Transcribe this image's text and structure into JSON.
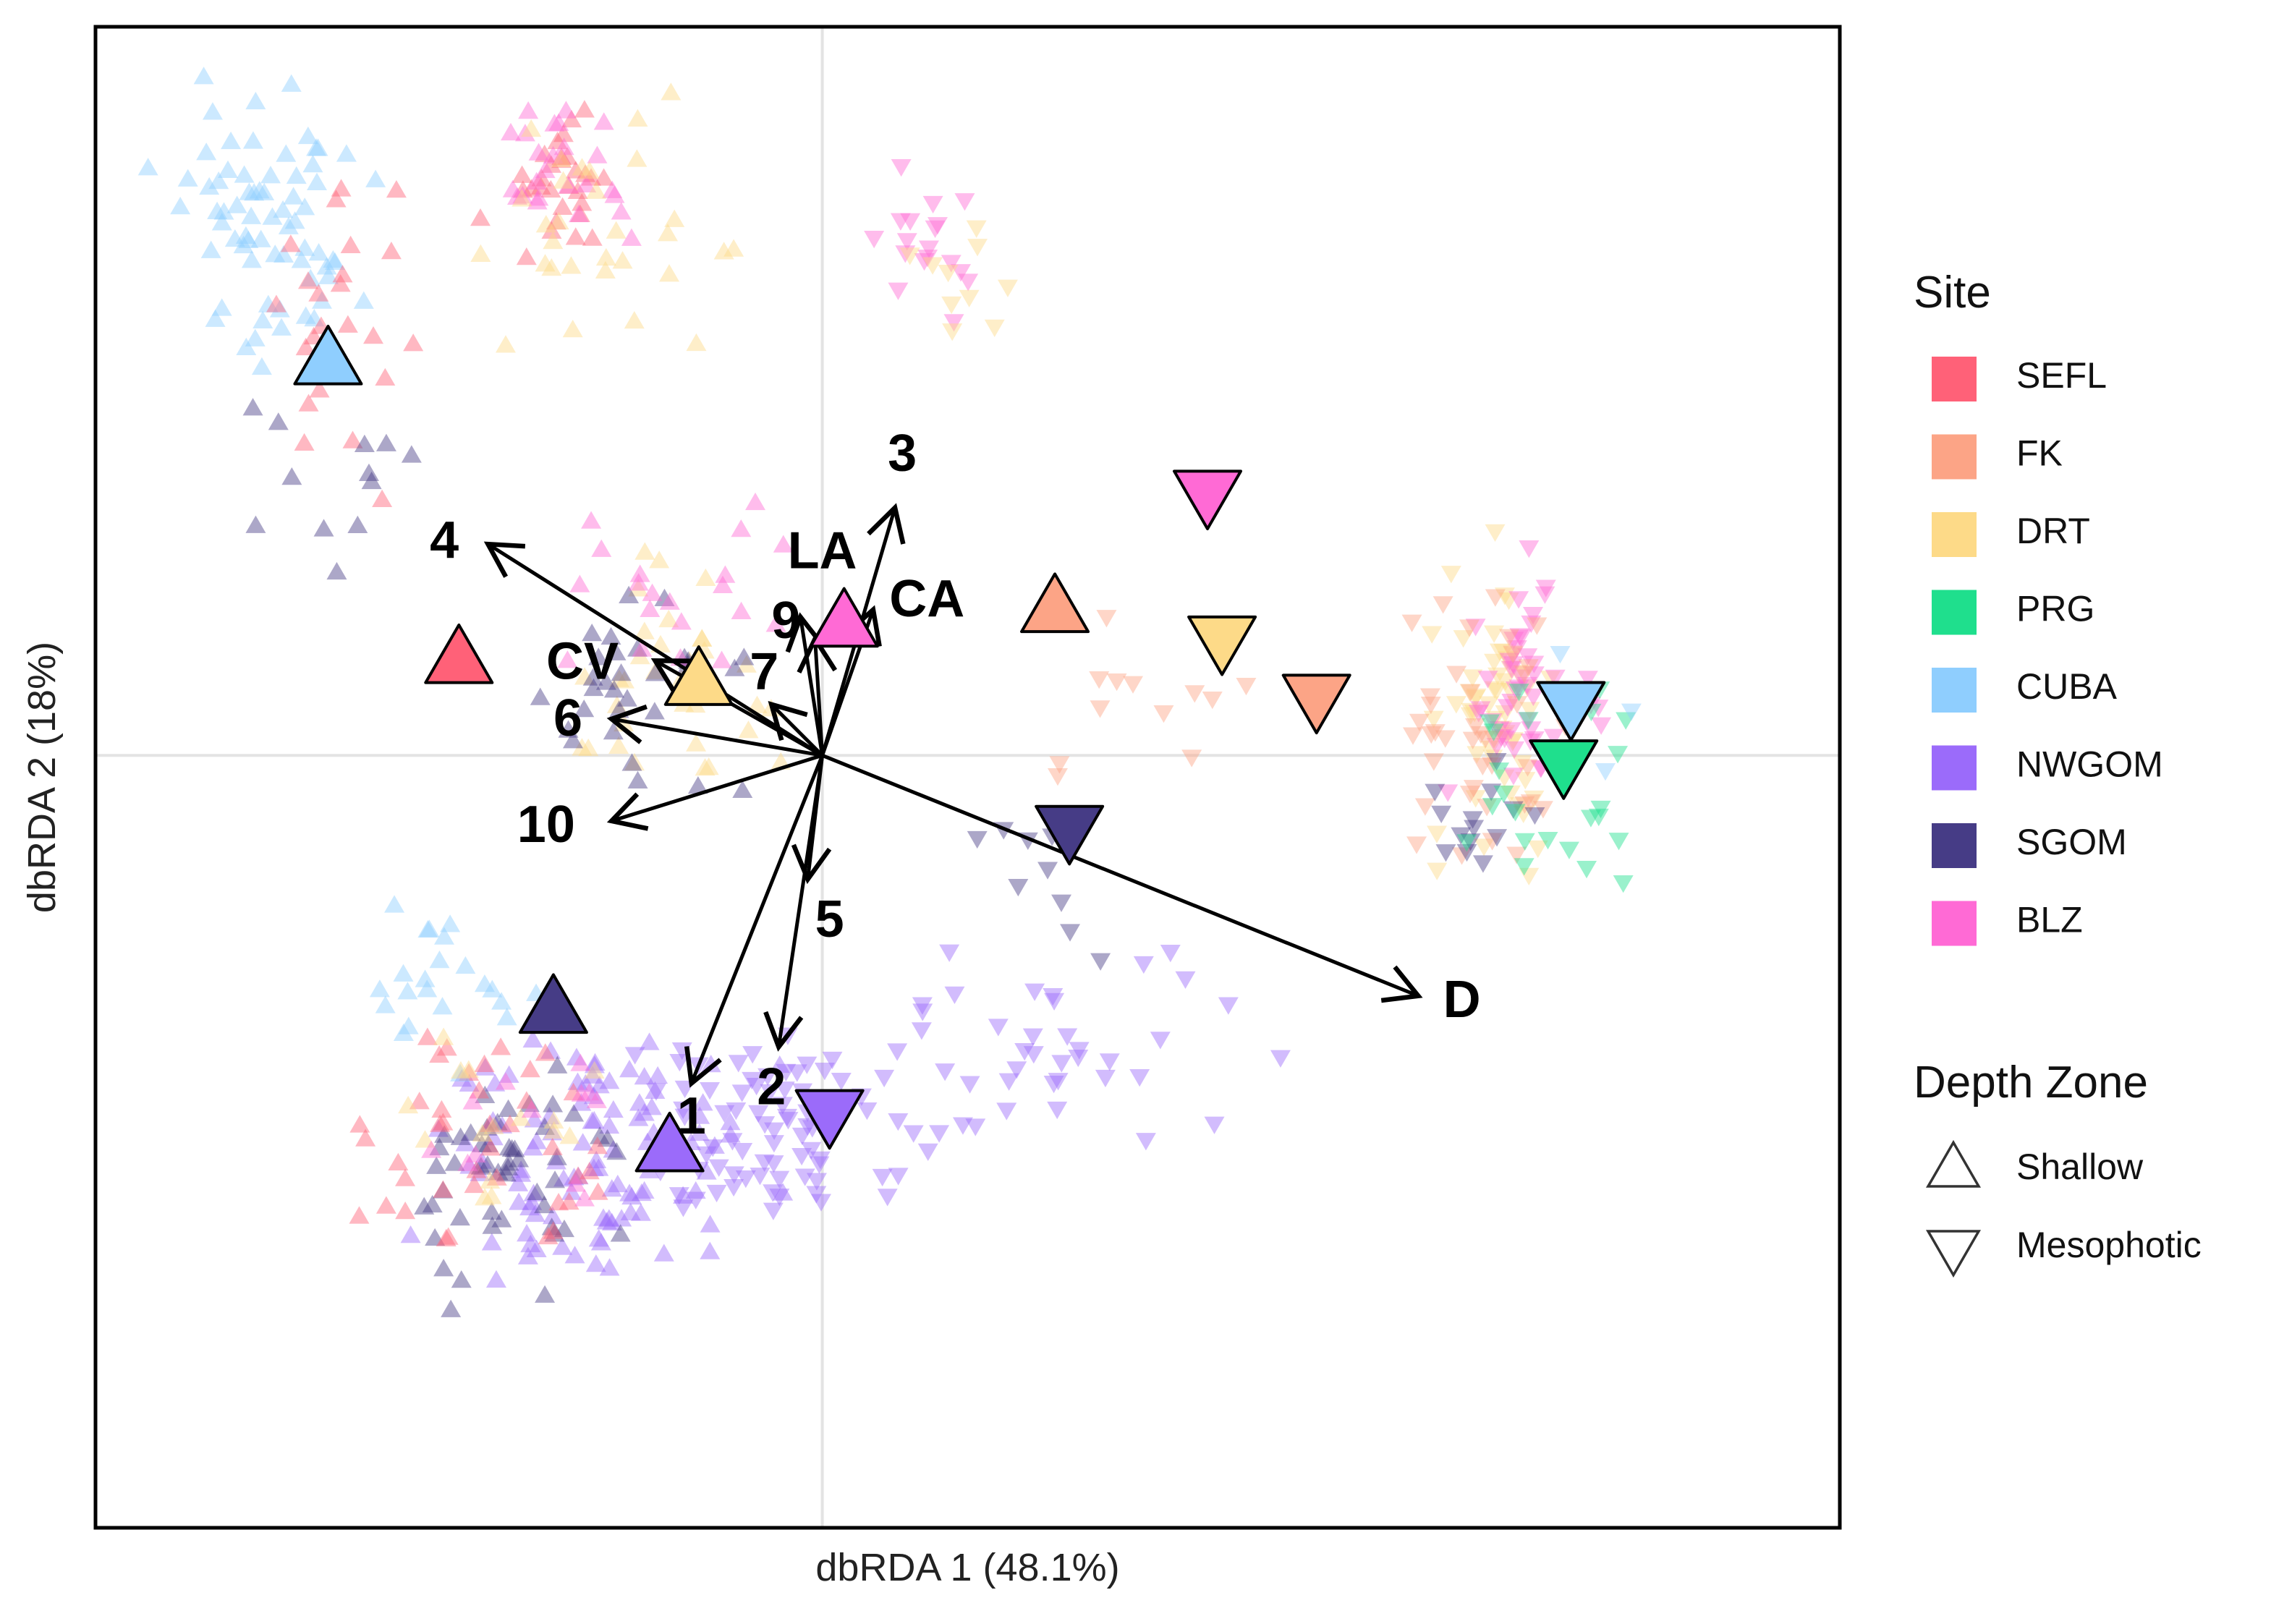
{
  "chart_data": {
    "type": "scatter",
    "xlabel": "dbRDA 1 (48.1%)",
    "ylabel": "dbRDA 2 (18%)",
    "xlim": [
      -5.0,
      7.0
    ],
    "ylim": [
      -5.3,
      5.0
    ],
    "grid": true,
    "grid_lines": {
      "x": 0,
      "y": 0
    },
    "point_alpha": 0.45,
    "colors": {
      "SEFL": "#ff6178",
      "FK": "#fca486",
      "DRT": "#fdda88",
      "PRG": "#1fdf8d",
      "CUBA": "#8fcefe",
      "NWGOM": "#9b6bfa",
      "SGOM": "#463c86",
      "BLZ": "#ff6ad5"
    },
    "legend": {
      "position": "right",
      "site_title": "Site",
      "sites": [
        "SEFL",
        "FK",
        "DRT",
        "PRG",
        "CUBA",
        "NWGOM",
        "SGOM",
        "BLZ"
      ],
      "depth_title": "Depth Zone",
      "depth_zones": [
        {
          "label": "Shallow",
          "shape": "triangle-up"
        },
        {
          "label": "Mesophotic",
          "shape": "triangle-down"
        }
      ]
    },
    "centroids": [
      {
        "site": "CUBA",
        "depth": "Shallow",
        "x": -3.4,
        "y": 2.7
      },
      {
        "site": "SEFL",
        "depth": "Shallow",
        "x": -2.5,
        "y": 0.65
      },
      {
        "site": "DRT",
        "depth": "Shallow",
        "x": -0.85,
        "y": 0.5
      },
      {
        "site": "BLZ",
        "depth": "Shallow",
        "x": 0.15,
        "y": 0.9
      },
      {
        "site": "FK",
        "depth": "Shallow",
        "x": 1.6,
        "y": 1.0
      },
      {
        "site": "SGOM",
        "depth": "Shallow",
        "x": -1.85,
        "y": -1.75
      },
      {
        "site": "NWGOM",
        "depth": "Shallow",
        "x": -1.05,
        "y": -2.7
      },
      {
        "site": "BLZ",
        "depth": "Mesophotic",
        "x": 2.65,
        "y": 1.8
      },
      {
        "site": "DRT",
        "depth": "Mesophotic",
        "x": 2.75,
        "y": 0.8
      },
      {
        "site": "FK",
        "depth": "Mesophotic",
        "x": 3.4,
        "y": 0.4
      },
      {
        "site": "SGOM",
        "depth": "Mesophotic",
        "x": 1.7,
        "y": -0.5
      },
      {
        "site": "CUBA",
        "depth": "Mesophotic",
        "x": 5.15,
        "y": 0.35
      },
      {
        "site": "PRG",
        "depth": "Mesophotic",
        "x": 5.1,
        "y": -0.05
      },
      {
        "site": "NWGOM",
        "depth": "Mesophotic",
        "x": 0.05,
        "y": -2.45
      }
    ],
    "clusters": [
      {
        "site": "CUBA",
        "depth": "Shallow",
        "cx": -3.8,
        "cy": 3.6,
        "sx": 0.45,
        "sy": 0.65,
        "n": 70
      },
      {
        "site": "SEFL",
        "depth": "Shallow",
        "cx": -3.4,
        "cy": 3.0,
        "sx": 0.4,
        "sy": 0.7,
        "n": 25
      },
      {
        "site": "SGOM",
        "depth": "Shallow",
        "cx": -3.3,
        "cy": 2.0,
        "sx": 0.4,
        "sy": 0.6,
        "n": 12
      },
      {
        "site": "SEFL",
        "depth": "Shallow",
        "cx": -1.8,
        "cy": 3.9,
        "sx": 0.3,
        "sy": 0.3,
        "n": 30
      },
      {
        "site": "BLZ",
        "depth": "Shallow",
        "cx": -1.7,
        "cy": 4.0,
        "sx": 0.35,
        "sy": 0.3,
        "n": 25
      },
      {
        "site": "DRT",
        "depth": "Shallow",
        "cx": -1.5,
        "cy": 3.5,
        "sx": 0.6,
        "sy": 0.6,
        "n": 30
      },
      {
        "site": "BLZ",
        "depth": "Mesophotic",
        "cx": 0.8,
        "cy": 3.5,
        "sx": 0.25,
        "sy": 0.3,
        "n": 18
      },
      {
        "site": "DRT",
        "depth": "Mesophotic",
        "cx": 0.9,
        "cy": 3.3,
        "sx": 0.3,
        "sy": 0.35,
        "n": 10
      },
      {
        "site": "DRT",
        "depth": "Shallow",
        "cx": -1.0,
        "cy": 0.5,
        "sx": 0.6,
        "sy": 0.55,
        "n": 35
      },
      {
        "site": "SGOM",
        "depth": "Shallow",
        "cx": -1.3,
        "cy": 0.4,
        "sx": 0.5,
        "sy": 0.45,
        "n": 30
      },
      {
        "site": "BLZ",
        "depth": "Shallow",
        "cx": -1.2,
        "cy": 1.1,
        "sx": 0.7,
        "sy": 0.5,
        "n": 20
      },
      {
        "site": "NWGOM",
        "depth": "Shallow",
        "cx": -1.6,
        "cy": -2.8,
        "sx": 0.75,
        "sy": 0.6,
        "n": 110
      },
      {
        "site": "SGOM",
        "depth": "Shallow",
        "cx": -2.2,
        "cy": -2.9,
        "sx": 0.5,
        "sy": 0.55,
        "n": 50
      },
      {
        "site": "SEFL",
        "depth": "Shallow",
        "cx": -2.3,
        "cy": -2.6,
        "sx": 0.5,
        "sy": 0.6,
        "n": 40
      },
      {
        "site": "CUBA",
        "depth": "Shallow",
        "cx": -2.6,
        "cy": -1.6,
        "sx": 0.4,
        "sy": 0.45,
        "n": 22
      },
      {
        "site": "DRT",
        "depth": "Shallow",
        "cx": -2.0,
        "cy": -2.5,
        "sx": 0.6,
        "sy": 0.6,
        "n": 15
      },
      {
        "site": "BLZ",
        "depth": "Shallow",
        "cx": -1.9,
        "cy": -2.5,
        "sx": 0.6,
        "sy": 0.5,
        "n": 12
      },
      {
        "site": "NWGOM",
        "depth": "Mesophotic",
        "cx": -0.3,
        "cy": -2.6,
        "sx": 0.7,
        "sy": 0.5,
        "n": 80
      },
      {
        "site": "NWGOM",
        "depth": "Mesophotic",
        "cx": 1.5,
        "cy": -2.0,
        "sx": 0.9,
        "sy": 0.55,
        "n": 40
      },
      {
        "site": "SGOM",
        "depth": "Mesophotic",
        "cx": 1.5,
        "cy": -0.8,
        "sx": 0.6,
        "sy": 0.5,
        "n": 10
      },
      {
        "site": "FK",
        "depth": "Mesophotic",
        "cx": 2.5,
        "cy": 0.5,
        "sx": 0.7,
        "sy": 0.45,
        "n": 12
      },
      {
        "site": "DRT",
        "depth": "Mesophotic",
        "cx": 4.6,
        "cy": 0.3,
        "sx": 0.3,
        "sy": 0.6,
        "n": 55
      },
      {
        "site": "BLZ",
        "depth": "Mesophotic",
        "cx": 4.85,
        "cy": 0.4,
        "sx": 0.35,
        "sy": 0.6,
        "n": 50
      },
      {
        "site": "FK",
        "depth": "Mesophotic",
        "cx": 4.6,
        "cy": 0.2,
        "sx": 0.35,
        "sy": 0.6,
        "n": 40
      },
      {
        "site": "SGOM",
        "depth": "Mesophotic",
        "cx": 4.6,
        "cy": -0.3,
        "sx": 0.3,
        "sy": 0.35,
        "n": 15
      },
      {
        "site": "PRG",
        "depth": "Mesophotic",
        "cx": 5.0,
        "cy": -0.1,
        "sx": 0.5,
        "sy": 0.55,
        "n": 25
      },
      {
        "site": "CUBA",
        "depth": "Mesophotic",
        "cx": 5.2,
        "cy": 0.3,
        "sx": 0.3,
        "sy": 0.3,
        "n": 6
      }
    ],
    "vectors": [
      {
        "label": "D",
        "x": 4.1,
        "y": -1.65
      },
      {
        "label": "3",
        "x": 0.5,
        "y": 1.7
      },
      {
        "label": "LA",
        "x": -0.05,
        "y": 0.8
      },
      {
        "label": "CA",
        "x": 0.35,
        "y": 1.0
      },
      {
        "label": "9",
        "x": -0.15,
        "y": 0.95
      },
      {
        "label": "4",
        "x": -2.3,
        "y": 1.45
      },
      {
        "label": "CV",
        "x": -1.15,
        "y": 0.65
      },
      {
        "label": "7",
        "x": -0.35,
        "y": 0.35
      },
      {
        "label": "6",
        "x": -1.45,
        "y": 0.25
      },
      {
        "label": "10",
        "x": -1.45,
        "y": -0.45
      },
      {
        "label": "5",
        "x": -0.1,
        "y": -0.85
      },
      {
        "label": "2",
        "x": -0.3,
        "y": -2.0
      },
      {
        "label": "1",
        "x": -0.9,
        "y": -2.25
      }
    ],
    "vector_label_positions": [
      {
        "label": "D",
        "x": 4.4,
        "y": -1.7
      },
      {
        "label": "3",
        "x": 0.55,
        "y": 2.05
      },
      {
        "label": "LA",
        "x": 0.0,
        "y": 1.38
      },
      {
        "label": "CA",
        "x": 0.72,
        "y": 1.05
      },
      {
        "label": "9",
        "x": -0.25,
        "y": 0.9
      },
      {
        "label": "4",
        "x": -2.6,
        "y": 1.45
      },
      {
        "label": "CV",
        "x": -1.65,
        "y": 0.62
      },
      {
        "label": "7",
        "x": -0.4,
        "y": 0.55
      },
      {
        "label": "6",
        "x": -1.75,
        "y": 0.23
      },
      {
        "label": "10",
        "x": -1.9,
        "y": -0.5
      },
      {
        "label": "5",
        "x": 0.05,
        "y": -1.15
      },
      {
        "label": "2",
        "x": -0.35,
        "y": -2.3
      },
      {
        "label": "1",
        "x": -0.9,
        "y": -2.5
      }
    ]
  }
}
